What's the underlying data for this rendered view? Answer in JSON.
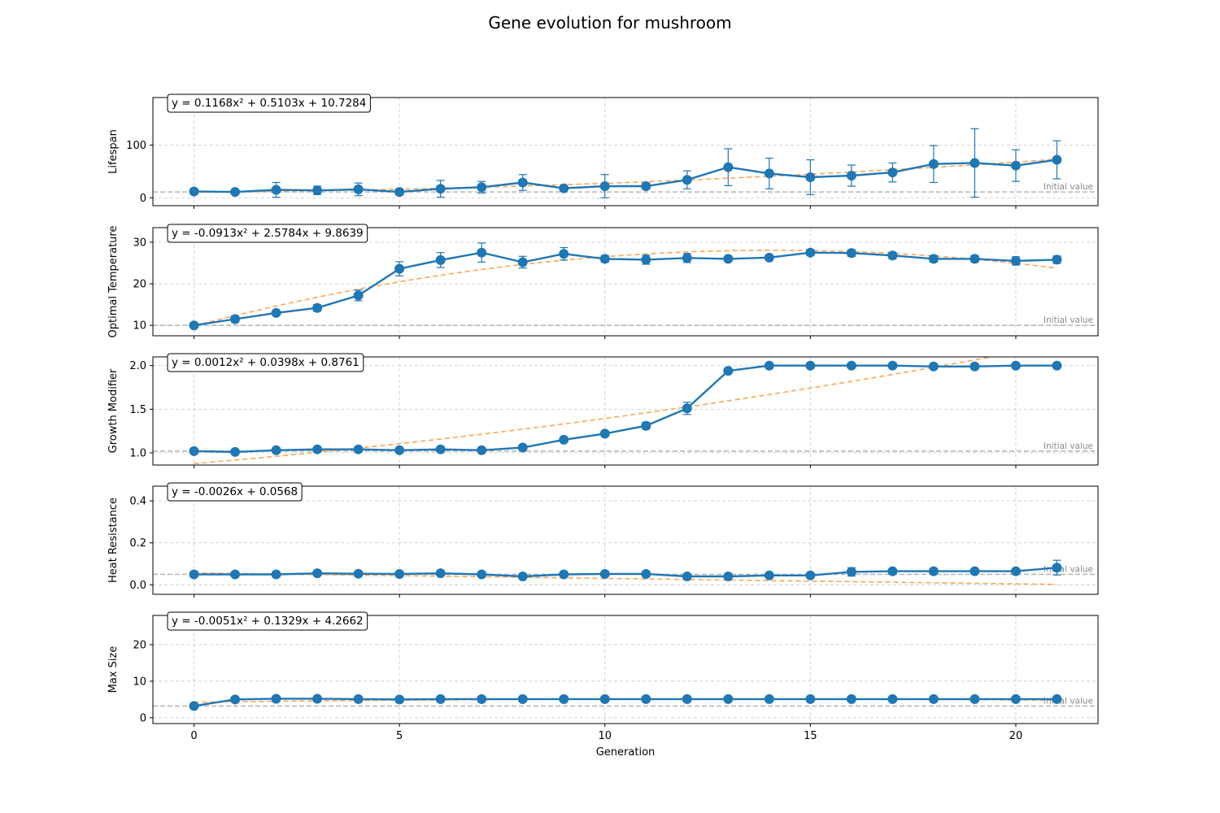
{
  "title": "Gene evolution for mushroom",
  "xlabel": "Generation",
  "initial_label": "Initial value",
  "colors": {
    "series": "#1f77b4",
    "fit": "#ffa95c",
    "initial_line": "#b8b8b8",
    "grid": "#cfcfcf"
  },
  "chart_data": [
    {
      "type": "line",
      "ylabel": "Lifespan",
      "equation": "y = 0.1168x² + 0.5103x + 10.7284",
      "fit": [
        0.1168,
        0.5103,
        10.7284
      ],
      "initial_value": 11,
      "xlim": [
        -1,
        22
      ],
      "ylim": [
        -15,
        190
      ],
      "yticks": [
        0,
        100
      ],
      "x": [
        0,
        1,
        2,
        3,
        4,
        5,
        6,
        7,
        8,
        9,
        10,
        11,
        12,
        13,
        14,
        15,
        16,
        17,
        18,
        19,
        20,
        21
      ],
      "values": [
        12,
        11,
        15,
        14,
        16,
        11,
        17,
        20,
        29,
        18,
        22,
        22,
        34,
        58,
        46,
        39,
        42,
        48,
        64,
        66,
        61,
        72
      ],
      "errors": [
        5,
        4,
        14,
        8,
        12,
        6,
        16,
        11,
        15,
        4,
        22,
        6,
        17,
        35,
        29,
        33,
        20,
        18,
        35,
        65,
        30,
        36
      ]
    },
    {
      "type": "line",
      "ylabel": "Optimal Temperature",
      "equation": "y = -0.0913x² + 2.5784x + 9.8639",
      "fit": [
        -0.0913,
        2.5784,
        9.8639
      ],
      "initial_value": 10,
      "xlim": [
        -1,
        22
      ],
      "ylim": [
        7.5,
        33.5
      ],
      "yticks": [
        10,
        20,
        30
      ],
      "x": [
        0,
        1,
        2,
        3,
        4,
        5,
        6,
        7,
        8,
        9,
        10,
        11,
        12,
        13,
        14,
        15,
        16,
        17,
        18,
        19,
        20,
        21
      ],
      "values": [
        10,
        11.5,
        13,
        14.2,
        17.2,
        23.6,
        25.7,
        27.5,
        25.2,
        27.2,
        26,
        25.8,
        26.2,
        26,
        26.3,
        27.5,
        27.4,
        26.8,
        26,
        26,
        25.5,
        25.8
      ],
      "errors": [
        0.3,
        0.8,
        0.5,
        0.8,
        1.3,
        1.7,
        1.8,
        2.3,
        1.4,
        1.5,
        0.8,
        1.1,
        1.1,
        0.6,
        0.5,
        0.7,
        0.8,
        0.8,
        0.8,
        0.8,
        1.0,
        0.9
      ]
    },
    {
      "type": "line",
      "ylabel": "Growth Modifier",
      "equation": "y = 0.0012x² + 0.0398x + 0.8761",
      "fit": [
        0.0012,
        0.0398,
        0.8761
      ],
      "initial_value": 1.02,
      "xlim": [
        -1,
        22
      ],
      "ylim": [
        0.86,
        2.1
      ],
      "yticks": [
        1.0,
        1.5,
        2.0
      ],
      "x": [
        0,
        1,
        2,
        3,
        4,
        5,
        6,
        7,
        8,
        9,
        10,
        11,
        12,
        13,
        14,
        15,
        16,
        17,
        18,
        19,
        20,
        21
      ],
      "values": [
        1.02,
        1.01,
        1.03,
        1.04,
        1.04,
        1.03,
        1.04,
        1.03,
        1.06,
        1.15,
        1.22,
        1.31,
        1.51,
        1.94,
        2.0,
        2.0,
        2.0,
        2.0,
        1.99,
        1.99,
        2.0,
        2.0
      ],
      "errors": [
        0.02,
        0.015,
        0.02,
        0.02,
        0.02,
        0.02,
        0.02,
        0.02,
        0.03,
        0.02,
        0.03,
        0.04,
        0.07,
        0.03,
        0.01,
        0.01,
        0.01,
        0.01,
        0.02,
        0.01,
        0.01,
        0.01
      ]
    },
    {
      "type": "line",
      "ylabel": "Heat Resistance",
      "equation": "y = -0.0026x + 0.0568",
      "fit": [
        0,
        -0.0026,
        0.0568
      ],
      "initial_value": 0.05,
      "xlim": [
        -1,
        22
      ],
      "ylim": [
        -0.045,
        0.47
      ],
      "yticks": [
        0.0,
        0.2,
        0.4
      ],
      "x": [
        0,
        1,
        2,
        3,
        4,
        5,
        6,
        7,
        8,
        9,
        10,
        11,
        12,
        13,
        14,
        15,
        16,
        17,
        18,
        19,
        20,
        21
      ],
      "values": [
        0.05,
        0.05,
        0.05,
        0.055,
        0.053,
        0.052,
        0.055,
        0.05,
        0.04,
        0.05,
        0.052,
        0.052,
        0.04,
        0.04,
        0.045,
        0.045,
        0.062,
        0.065,
        0.065,
        0.065,
        0.065,
        0.082
      ],
      "errors": [
        0.005,
        0.005,
        0.005,
        0.01,
        0.01,
        0.01,
        0.01,
        0.005,
        0.005,
        0.005,
        0.005,
        0.008,
        0.01,
        0.008,
        0.01,
        0.005,
        0.02,
        0.01,
        0.01,
        0.01,
        0.01,
        0.035
      ]
    },
    {
      "type": "line",
      "ylabel": "Max Size",
      "equation": "y = -0.0051x² + 0.1329x + 4.2662",
      "fit": [
        -0.0051,
        0.1329,
        4.2662
      ],
      "initial_value": 3.2,
      "xlim": [
        -1,
        22
      ],
      "ylim": [
        -1.6,
        28
      ],
      "yticks": [
        0,
        10,
        20
      ],
      "x": [
        0,
        1,
        2,
        3,
        4,
        5,
        6,
        7,
        8,
        9,
        10,
        11,
        12,
        13,
        14,
        15,
        16,
        17,
        18,
        19,
        20,
        21
      ],
      "values": [
        3.2,
        5.0,
        5.2,
        5.2,
        5.1,
        5.0,
        5.1,
        5.1,
        5.1,
        5.1,
        5.1,
        5.1,
        5.1,
        5.1,
        5.1,
        5.1,
        5.1,
        5.1,
        5.1,
        5.1,
        5.1,
        5.1
      ],
      "errors": [
        0.3,
        0.3,
        0.2,
        0.2,
        0.2,
        0.2,
        0.2,
        0.2,
        0.2,
        0.2,
        0.2,
        0.2,
        0.2,
        0.2,
        0.2,
        0.2,
        0.2,
        0.2,
        0.2,
        0.2,
        0.2,
        0.2
      ]
    }
  ],
  "xticks": [
    0,
    5,
    10,
    15,
    20
  ]
}
